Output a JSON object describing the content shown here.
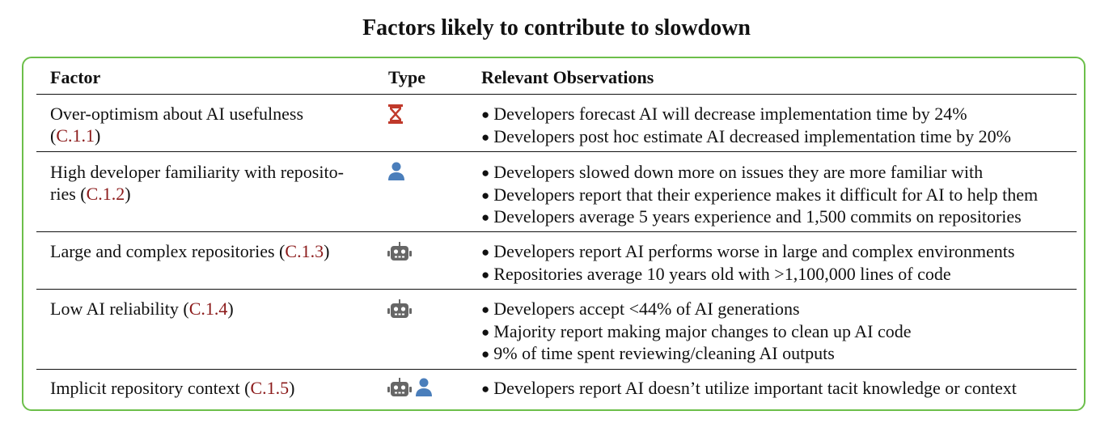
{
  "title": "Factors likely to contribute to slowdown",
  "headers": {
    "factor": "Factor",
    "type": "Type",
    "observations": "Relevant Observations"
  },
  "rows": [
    {
      "factor_line1": "Over-optimism about AI usefulness",
      "factor_line2_pre": "(",
      "ref": "C.1.1",
      "factor_line2_post": ")",
      "types": [
        "hourglass-icon"
      ],
      "observations": [
        "Developers forecast AI will decrease implementation time by 24%",
        "Developers post hoc estimate AI decreased implementation time by 20%"
      ]
    },
    {
      "factor_line1": "High developer familiarity with reposito-",
      "factor_line2_pre": "ries (",
      "ref": "C.1.2",
      "factor_line2_post": ")",
      "types": [
        "person-icon"
      ],
      "observations": [
        "Developers slowed down more on issues they are more familiar with",
        "Developers report that their experience makes it difficult for AI to help them",
        "Developers average 5 years experience and 1,500 commits on repositories"
      ]
    },
    {
      "factor_pre": "Large and complex repositories (",
      "ref": "C.1.3",
      "factor_post": ")",
      "types": [
        "robot-icon"
      ],
      "observations": [
        "Developers report AI performs worse in large and complex environments",
        "Repositories average 10 years old with >1,100,000 lines of code"
      ]
    },
    {
      "factor_pre": "Low AI reliability (",
      "ref": "C.1.4",
      "factor_post": ")",
      "types": [
        "robot-icon"
      ],
      "observations": [
        "Developers accept <44% of AI generations",
        "Majority report making major changes to clean up AI code",
        "9% of time spent reviewing/cleaning AI outputs"
      ]
    },
    {
      "factor_pre": "Implicit repository context (",
      "ref": "C.1.5",
      "factor_post": ")",
      "types": [
        "robot-icon",
        "person-icon"
      ],
      "observations": [
        "Developers report AI doesn’t utilize important tacit knowledge or context"
      ]
    }
  ],
  "colors": {
    "frame": "#6cbf4a",
    "reference": "#8b1a1a",
    "hourglass": "#c0392b",
    "person": "#4a7ebb",
    "robot": "#666666"
  }
}
